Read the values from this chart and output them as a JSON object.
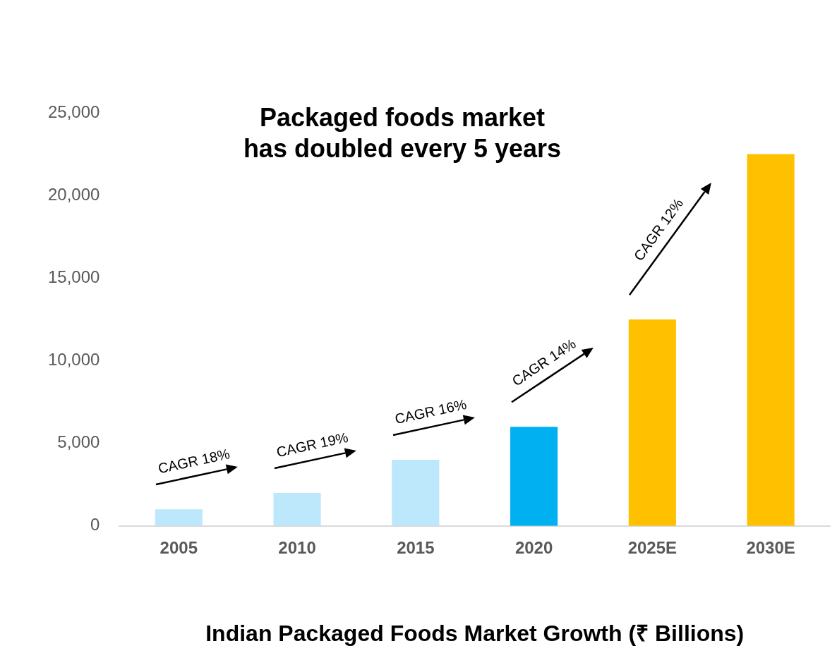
{
  "chart_data": {
    "type": "bar",
    "title": "Packaged foods market\nhas doubled every 5 years",
    "xlabel": "Indian Packaged Foods Market Growth (₹ Billions)",
    "categories": [
      "2005",
      "2010",
      "2015",
      "2020",
      "2025E",
      "2030E"
    ],
    "values": [
      1000,
      2000,
      4000,
      6000,
      12500,
      22500
    ],
    "colors": [
      "#bde7fb",
      "#bde7fb",
      "#bde7fb",
      "#00b0f0",
      "#ffc000",
      "#ffc000"
    ],
    "ylim": [
      0,
      25000
    ],
    "yticks": [
      0,
      {
        "value": 5000,
        "label": "5,000"
      },
      {
        "value": 10000,
        "label": "10,000"
      },
      {
        "value": 15000,
        "label": "15,000"
      },
      {
        "value": 20000,
        "label": "20,000"
      },
      {
        "value": 25000,
        "label": "25,000"
      }
    ],
    "grid": false,
    "legend": false,
    "annotations": [
      "CAGR 18%",
      "CAGR 19%",
      "CAGR 16%",
      "CAGR 14%",
      "CAGR 12%"
    ]
  }
}
